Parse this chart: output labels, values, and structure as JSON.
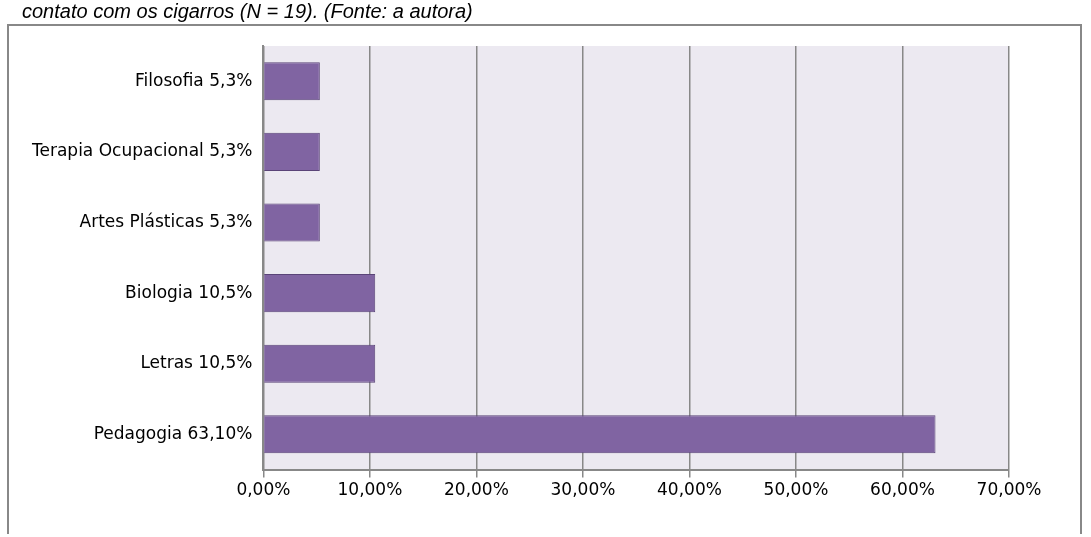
{
  "chart_data": {
    "type": "bar",
    "orientation": "horizontal",
    "title": "contato com os cigarros (N = 19). (Fonte: a autora)",
    "categories": [
      "Filosofia 5,3%",
      "Terapia Ocupacional 5,3%",
      "Artes Plásticas 5,3%",
      "Biologia 10,5%",
      "Letras 10,5%",
      "Pedagogia 63,10%"
    ],
    "values": [
      5.3,
      5.3,
      5.3,
      10.5,
      10.5,
      63.1
    ],
    "color": "#8064a2",
    "xlim": [
      0,
      70
    ],
    "xticks": [
      {
        "value": 0,
        "label": "0,00%"
      },
      {
        "value": 10,
        "label": "10,00%"
      },
      {
        "value": 20,
        "label": "20,00%"
      },
      {
        "value": 30,
        "label": "30,00%"
      },
      {
        "value": 40,
        "label": "40,00%"
      },
      {
        "value": 50,
        "label": "50,00%"
      },
      {
        "value": 60,
        "label": "60,00%"
      },
      {
        "value": 70,
        "label": "70,00%"
      }
    ],
    "grid": "x",
    "legend": false
  }
}
